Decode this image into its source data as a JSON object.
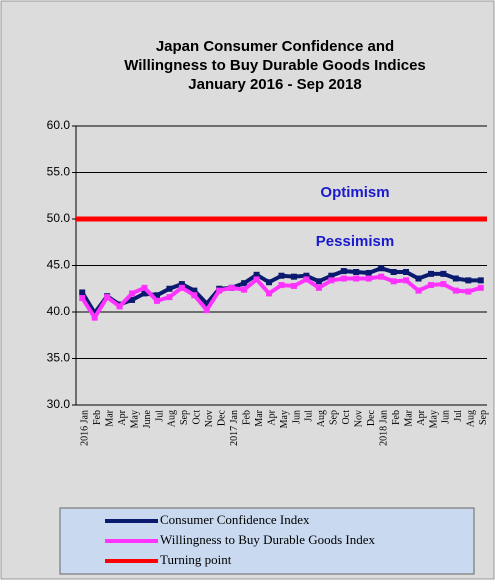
{
  "chart_data": {
    "type": "line",
    "title": [
      "Japan Consumer Confidence and",
      "Willingness to Buy Durable Goods Indices",
      "January 2016 - Sep 2018"
    ],
    "categories": [
      "2016 Jan",
      "Feb",
      "Mar",
      "Apr",
      "May",
      "June",
      "Jul",
      "Aug",
      "Sep",
      "Oct",
      "Nov",
      "Dec",
      "2017 Jan",
      "Feb",
      "Mar",
      "Apr",
      "May",
      "Jun",
      "Jul",
      "Aug",
      "Sep",
      "Oct",
      "Nov",
      "Dec",
      "2018 Jan",
      "Feb",
      "Mar",
      "Apr",
      "May",
      "Jun",
      "Jul",
      "Aug",
      "Sep"
    ],
    "series": [
      {
        "name": "Consumer Confidence Index",
        "color": "#0a1a6e",
        "values": [
          42.1,
          39.9,
          41.7,
          40.8,
          41.3,
          42.0,
          41.8,
          42.5,
          43.0,
          42.3,
          40.9,
          42.5,
          42.6,
          43.1,
          44.0,
          43.2,
          43.9,
          43.8,
          43.9,
          43.3,
          43.9,
          44.4,
          44.3,
          44.2,
          44.7,
          44.3,
          44.3,
          43.6,
          44.1,
          44.1,
          43.6,
          43.4,
          43.4
        ]
      },
      {
        "name": "Willingness to Buy Durable Goods Index",
        "color": "#ff33ff",
        "values": [
          41.5,
          39.4,
          41.6,
          40.6,
          42.0,
          42.6,
          41.2,
          41.6,
          42.6,
          41.8,
          40.2,
          42.3,
          42.6,
          42.4,
          43.5,
          42.0,
          42.9,
          42.8,
          43.5,
          42.6,
          43.4,
          43.6,
          43.6,
          43.6,
          43.8,
          43.3,
          43.4,
          42.3,
          42.9,
          43.0,
          42.3,
          42.2,
          42.6
        ]
      }
    ],
    "reference_line": {
      "name": "Turning point",
      "value": 50,
      "color": "#ff0000"
    },
    "annotations": [
      {
        "text": "Optimism",
        "value": 52.8,
        "color": "#1a1acc"
      },
      {
        "text": "Pessimism",
        "value": 47.5,
        "color": "#1a1acc"
      }
    ],
    "ylim": [
      30,
      60
    ],
    "yticks": [
      {
        "value": 30,
        "label": "30.0"
      },
      {
        "value": 35,
        "label": "35.0"
      },
      {
        "value": 40,
        "label": "40.0"
      },
      {
        "value": 45,
        "label": "45.0"
      },
      {
        "value": 50,
        "label": "50.0"
      },
      {
        "value": 55,
        "label": "55.0"
      },
      {
        "value": 60,
        "label": "60.0"
      }
    ],
    "grid": true
  }
}
